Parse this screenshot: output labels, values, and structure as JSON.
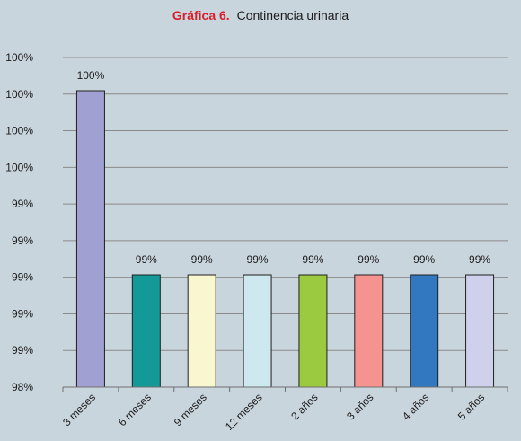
{
  "chart_data": {
    "type": "bar",
    "title_prefix": "Gráfica 6.",
    "title": "Continencia urinaria",
    "categories": [
      "3 meses",
      "6 meses",
      "9 meses",
      "12 meses",
      "2 años",
      "3 años",
      "4 años",
      "5 años"
    ],
    "values": [
      100,
      99,
      99,
      99,
      99,
      99,
      99,
      99
    ],
    "data_labels": [
      "100%",
      "99%",
      "99%",
      "99%",
      "99%",
      "99%",
      "99%",
      "99%"
    ],
    "bar_colors": [
      "#a0a0d2",
      "#139a98",
      "#f8f7cf",
      "#cde9ef",
      "#9bc93f",
      "#f59391",
      "#3278c1",
      "#cfd0ec"
    ],
    "y_tick_labels": [
      "98%",
      "99%",
      "99%",
      "99%",
      "99%",
      "99%",
      "100%",
      "100%",
      "100%",
      "100%"
    ],
    "grid": true,
    "legend": "none"
  }
}
